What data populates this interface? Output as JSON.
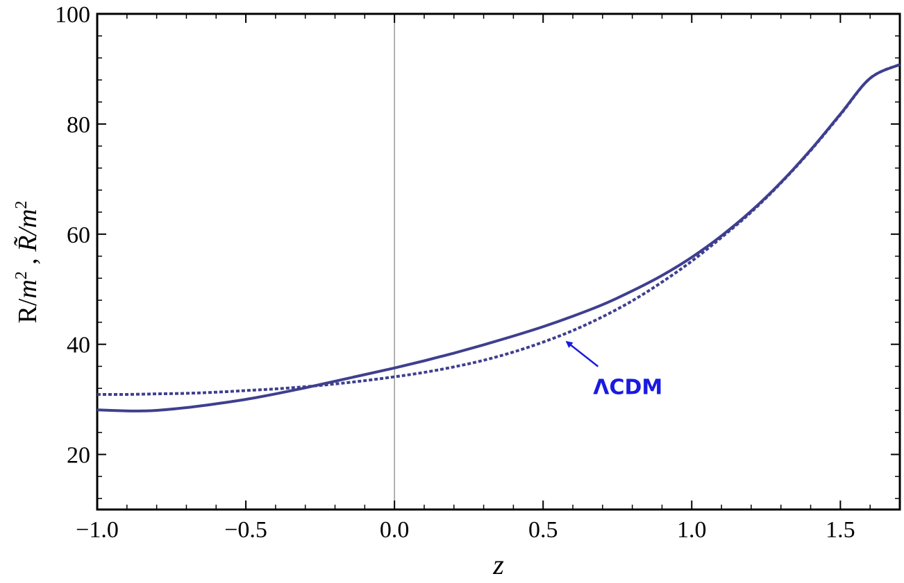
{
  "chart_data": {
    "type": "line",
    "title": "",
    "xlabel": "z",
    "ylabel": {
      "part1": "R/",
      "var1": "m",
      "exp1": "2",
      "sep": " , ",
      "part2": "R̃/",
      "var2": "m",
      "exp2": "2"
    },
    "xlim": [
      -1.0,
      1.7
    ],
    "ylim": [
      10,
      100
    ],
    "xticks": [
      -1.0,
      -0.5,
      0.0,
      0.5,
      1.0,
      1.5
    ],
    "xtick_labels": [
      "−1.0",
      "−0.5",
      "0.0",
      "0.5",
      "1.0",
      "1.5"
    ],
    "yticks": [
      20,
      40,
      60,
      80,
      100
    ],
    "ytick_labels": [
      "20",
      "40",
      "60",
      "80",
      "100"
    ],
    "grid": false,
    "vertical_line_x": 0.0,
    "series_color": "#3f3f8f",
    "series": [
      {
        "style": "solid",
        "x": [
          -1.0,
          -0.9,
          -0.85,
          -0.8,
          -0.7,
          -0.6,
          -0.5,
          -0.4,
          -0.3,
          -0.2,
          -0.1,
          0.0,
          0.1,
          0.2,
          0.3,
          0.4,
          0.5,
          0.6,
          0.7,
          0.8,
          0.9,
          1.0,
          1.1,
          1.2,
          1.3,
          1.4,
          1.5,
          1.6,
          1.7
        ],
        "values": [
          28.1,
          27.9,
          27.9,
          28.0,
          28.5,
          29.2,
          30.0,
          31.0,
          32.1,
          33.3,
          34.5,
          35.7,
          37.0,
          38.4,
          39.9,
          41.5,
          43.2,
          45.1,
          47.2,
          49.7,
          52.5,
          55.8,
          59.7,
          64.2,
          69.4,
          75.3,
          81.8,
          88.3,
          90.8
        ]
      },
      {
        "style": "dashed",
        "x": [
          -1.0,
          -0.9,
          -0.8,
          -0.7,
          -0.6,
          -0.5,
          -0.4,
          -0.3,
          -0.2,
          -0.1,
          0.0,
          0.1,
          0.2,
          0.3,
          0.4,
          0.5,
          0.6,
          0.7,
          0.8,
          0.9,
          1.0,
          1.1,
          1.2,
          1.3,
          1.4,
          1.5,
          1.6,
          1.7
        ],
        "values": [
          30.9,
          30.9,
          31.0,
          31.1,
          31.3,
          31.6,
          31.9,
          32.3,
          32.8,
          33.4,
          34.1,
          34.9,
          35.9,
          37.1,
          38.6,
          40.4,
          42.5,
          45.0,
          47.9,
          51.3,
          55.1,
          59.4,
          64.0,
          69.3,
          75.2,
          81.7,
          88.3,
          90.8
        ]
      }
    ],
    "annotation": {
      "label": "ΛCDM",
      "color": "#1a1ae0",
      "arrow_to": {
        "x": 0.57,
        "y": 40.7
      },
      "text_anchor": {
        "x": 0.68,
        "y": 32.2
      }
    }
  }
}
